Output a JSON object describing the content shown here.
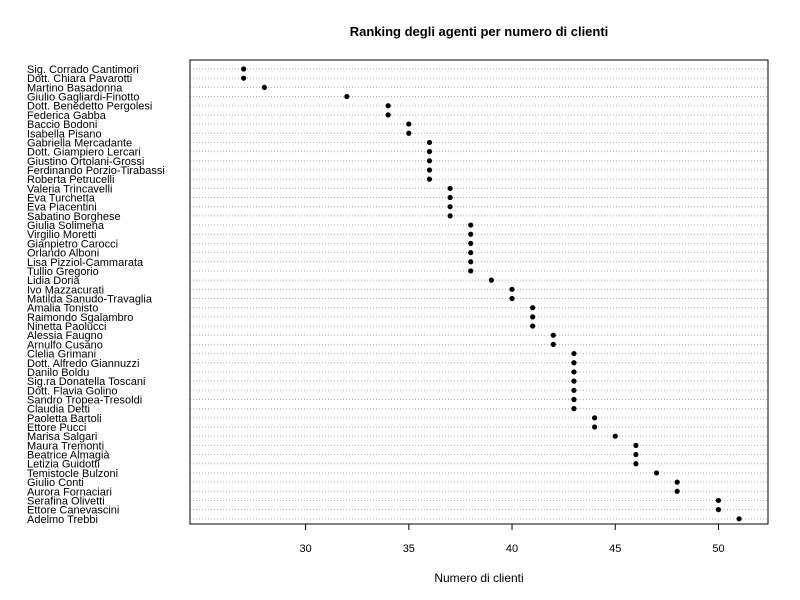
{
  "chart_data": {
    "type": "scatter",
    "title": "Ranking degli agenti per numero di clienti",
    "xlabel": "Numero di clienti",
    "ylabel": "",
    "xlim": [
      24.4,
      52.4
    ],
    "xticks": [
      30,
      35,
      40,
      45,
      50
    ],
    "grid": "horizontal-dotted",
    "categories": [
      "Sig. Corrado Cantimori",
      "Dott. Chiara Pavarotti",
      "Martino Basadonna",
      "Giulio Gagliardi-Finotto",
      "Dott. Benedetto Pergolesi",
      "Federica Gabba",
      "Baccio Bodoni",
      "Isabella Pisano",
      "Gabriella Mercadante",
      "Dott. Giampiero Lercari",
      "Giustino Ortolani-Grossi",
      "Ferdinando Porzio-Tirabassi",
      "Roberta Petrucelli",
      "Valeria Trincavelli",
      "Eva Turchetta",
      "Eva Piacentini",
      "Sabatino Borghese",
      "Giulia Solimena",
      "Virgilio Moretti",
      "Gianpietro Carocci",
      "Orlando Alboni",
      "Lisa Pizziol-Cammarata",
      "Tullio Gregorio",
      "Lidia Doria",
      "Ivo Mazzacurati",
      "Matilda Sanudo-Travaglia",
      "Amalia Tonisto",
      "Raimondo Sgalambro",
      "Ninetta Paolucci",
      "Alessia Faugno",
      "Arnulfo Cusano",
      "Clelia Grimani",
      "Dott. Alfredo Giannuzzi",
      "Danilo Boldu",
      "Sig.ra Donatella Toscani",
      "Dott. Flavia Golino",
      "Sandro Tropea-Tresoldi",
      "Claudia Detti",
      "Paoletta Bartoli",
      "Ettore Pucci",
      "Marisa Salgari",
      "Maura Tremonti",
      "Beatrice Almagià",
      "Letizia Guidotti",
      "Temistocle Bulzoni",
      "Giulio Conti",
      "Aurora Fornaciari",
      "Serafina Olivetti",
      "Ettore Canevascini",
      "Adelmo Trebbi"
    ],
    "values": [
      27,
      27,
      28,
      32,
      34,
      34,
      35,
      35,
      36,
      36,
      36,
      36,
      36,
      37,
      37,
      37,
      37,
      38,
      38,
      38,
      38,
      38,
      38,
      39,
      40,
      40,
      41,
      41,
      41,
      42,
      42,
      43,
      43,
      43,
      43,
      43,
      43,
      43,
      44,
      44,
      45,
      46,
      46,
      46,
      47,
      48,
      48,
      50,
      50,
      51
    ]
  }
}
